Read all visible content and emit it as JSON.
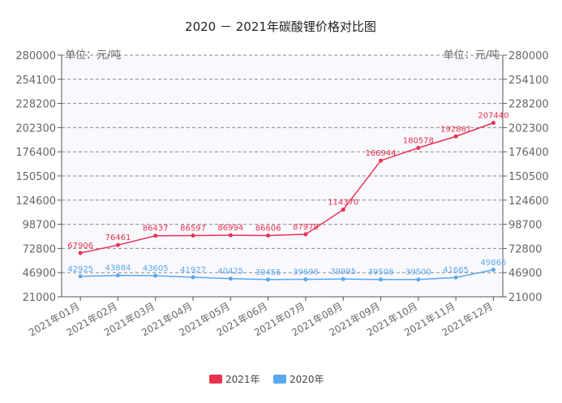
{
  "chart_data": {
    "type": "line",
    "title": "2020 － 2021年碳酸锂价格对比图",
    "unit_label_left": "单位：元/吨",
    "unit_label_right": "单位：元/吨",
    "categories": [
      "2021年01月",
      "2021年02月",
      "2021年03月",
      "2021年04月",
      "2021年05月",
      "2021年06月",
      "2021年07月",
      "2021年08月",
      "2021年09月",
      "2021年10月",
      "2021年11月",
      "2021年12月"
    ],
    "yticks": [
      21000,
      46900,
      72800,
      98700,
      124600,
      150500,
      176400,
      202300,
      228200,
      254100,
      280000
    ],
    "ytick_labels": [
      "21000",
      "46900",
      "72800",
      "98700",
      "124600",
      "150500",
      "176400",
      "202300",
      "228200",
      "254100",
      "280000"
    ],
    "ylim": [
      21000,
      280000
    ],
    "grid": true,
    "legend_position": "bottom",
    "series": [
      {
        "name": "2021年",
        "color": "#e8334f",
        "values": [
          67906,
          76461,
          86437,
          86597,
          86994,
          86606,
          87978,
          114370,
          166944,
          180578,
          192861,
          207440
        ],
        "labels": [
          "67906",
          "76461",
          "86437",
          "86597",
          "86994",
          "86606",
          "87978",
          "114370",
          "166944",
          "180578",
          "192861",
          "207440"
        ]
      },
      {
        "name": "2020年",
        "color": "#5aa8ef",
        "values": [
          42925,
          43884,
          43605,
          41927,
          40425,
          39456,
          39696,
          39995,
          39508,
          39500,
          41665,
          49866
        ],
        "labels": [
          "42925",
          "43884",
          "43605",
          "41927",
          "40425",
          "39456",
          "39696",
          "39995",
          "39508",
          "39500",
          "41665",
          "49866"
        ]
      }
    ]
  }
}
